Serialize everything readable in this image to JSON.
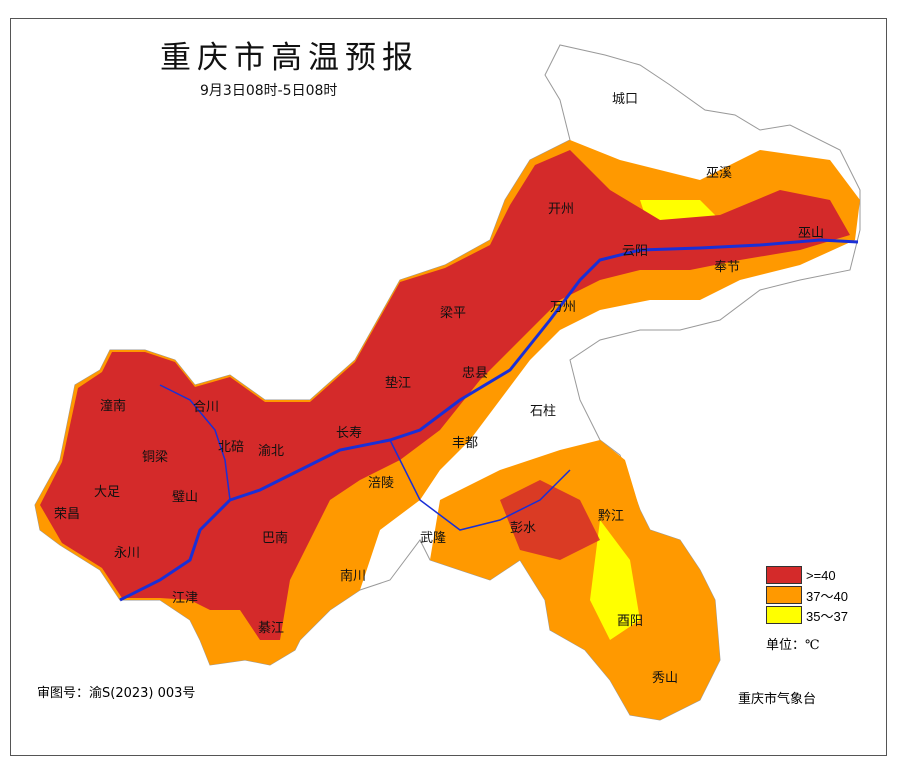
{
  "title": "重庆市高温预报",
  "subtitle": "9月3日08时-5日08时",
  "legend": {
    "items": [
      {
        "label": ">=40",
        "color": "#d42a2a"
      },
      {
        "label": "37～40",
        "color": "#ff9900"
      },
      {
        "label": "35～37",
        "color": "#ffff00"
      }
    ],
    "unit": "单位：℃"
  },
  "agency": "重庆市气象台",
  "review_number": "审图号：渝S(2023) 003号",
  "river_color": "#1a2fd6",
  "districts": [
    "城口",
    "巫溪",
    "巫山",
    "开州",
    "云阳",
    "奉节",
    "万州",
    "梁平",
    "忠县",
    "垫江",
    "石柱",
    "长寿",
    "丰都",
    "潼南",
    "合川",
    "铜梁",
    "北碚",
    "渝北",
    "大足",
    "璧山",
    "荣昌",
    "永川",
    "巴南",
    "涪陵",
    "南川",
    "武隆",
    "彭水",
    "黔江",
    "江津",
    "綦江",
    "酉阳",
    "秀山"
  ]
}
